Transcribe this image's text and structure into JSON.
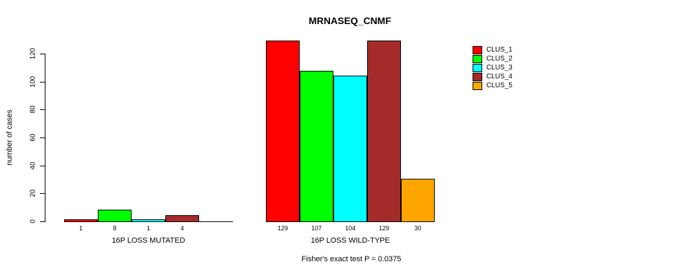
{
  "title": "MRNASEQ_CNMF",
  "footer": "Fisher's exact test P = 0.0375",
  "chart_data": {
    "type": "bar",
    "title": "MRNASEQ_CNMF",
    "ylabel": "number of cases",
    "xlabel": "",
    "ylim": [
      0,
      120
    ],
    "yticks": [
      0,
      20,
      40,
      60,
      80,
      100,
      120
    ],
    "grid": false,
    "legend_position": "right",
    "series_names": [
      "CLUS_1",
      "CLUS_2",
      "CLUS_3",
      "CLUS_4",
      "CLUS_5"
    ],
    "series_colors": [
      "#ff0000",
      "#00ff00",
      "#00ffff",
      "#a52a2a",
      "#ffa500"
    ],
    "groups": [
      {
        "label": "16P LOSS MUTATED",
        "values": [
          1,
          8,
          1,
          4,
          0
        ]
      },
      {
        "label": "16P LOSS WILD-TYPE",
        "values": [
          129,
          107,
          104,
          129,
          30
        ]
      }
    ],
    "bar_value_labels": [
      [
        "1",
        "8",
        "1",
        "4",
        ""
      ],
      [
        "129",
        "107",
        "104",
        "129",
        "30"
      ]
    ],
    "annotation": "Fisher's exact test P = 0.0375"
  }
}
